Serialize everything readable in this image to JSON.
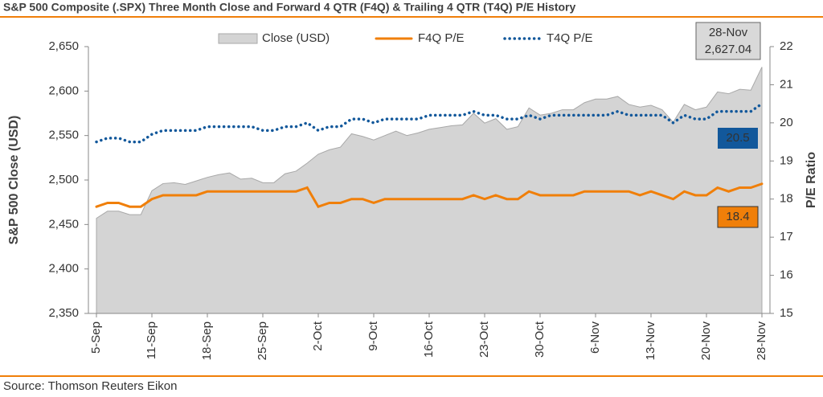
{
  "chart_data": {
    "type": "area-line",
    "title": "S&P 500 Composite (.SPX) Three Month Close and Forward 4 QTR (F4Q) & Trailing 4 QTR (T4Q) P/E History",
    "y_label": "S&P 500 Close (USD)",
    "y2_label": "P/E Ratio",
    "source": "Source: Thomson Reuters Eikon",
    "annotations": [
      "28-Nov",
      "2,627.04",
      "20.5",
      "18.4"
    ],
    "categories": [
      "5-Sep",
      null,
      null,
      null,
      null,
      "11-Sep",
      null,
      null,
      null,
      null,
      "18-Sep",
      null,
      null,
      null,
      null,
      "25-Sep",
      null,
      null,
      null,
      null,
      "2-Oct",
      null,
      null,
      null,
      null,
      "9-Oct",
      null,
      null,
      null,
      null,
      "16-Oct",
      null,
      null,
      null,
      null,
      "23-Oct",
      null,
      null,
      null,
      null,
      "30-Oct",
      null,
      null,
      null,
      null,
      "6-Nov",
      null,
      null,
      null,
      null,
      "13-Nov",
      null,
      null,
      null,
      null,
      "20-Nov",
      null,
      null,
      null,
      null,
      "28-Nov"
    ],
    "ylim": [
      2350,
      2650
    ],
    "yticks": [
      {
        "value": 2350,
        "label": "2,350"
      },
      {
        "value": 2400,
        "label": "2,400"
      },
      {
        "value": 2450,
        "label": "2,450"
      },
      {
        "value": 2500,
        "label": "2,500"
      },
      {
        "value": 2550,
        "label": "2,550"
      },
      {
        "value": 2600,
        "label": "2,600"
      },
      {
        "value": 2650,
        "label": "2,650"
      }
    ],
    "y2lim": [
      15,
      22
    ],
    "y2ticks": [
      15,
      16,
      17,
      18,
      19,
      20,
      21,
      22
    ],
    "series": [
      {
        "name": "Close (USD)",
        "kind": "area",
        "color": "#d4d4d4",
        "values": [
          2457,
          2465,
          2465,
          2461,
          2461,
          2488,
          2496,
          2497,
          2495,
          2499,
          2503,
          2506,
          2508,
          2501,
          2502,
          2497,
          2497,
          2507,
          2510,
          2519,
          2529,
          2534,
          2537,
          2552,
          2549,
          2545,
          2550,
          2555,
          2550,
          2553,
          2557,
          2559,
          2561,
          2562,
          2575,
          2564,
          2569,
          2557,
          2560,
          2581,
          2573,
          2575,
          2579,
          2579,
          2587,
          2591,
          2591,
          2594,
          2585,
          2582,
          2584,
          2579,
          2565,
          2585,
          2579,
          2582,
          2599,
          2597,
          2602,
          2601,
          2627.04
        ]
      },
      {
        "name": "F4Q P/E",
        "kind": "line",
        "axis": "y2",
        "color": "#f07f09",
        "values": [
          17.8,
          17.9,
          17.9,
          17.8,
          17.8,
          18.0,
          18.1,
          18.1,
          18.1,
          18.1,
          18.2,
          18.2,
          18.2,
          18.2,
          18.2,
          18.2,
          18.2,
          18.2,
          18.2,
          18.3,
          17.8,
          17.9,
          17.9,
          18.0,
          18.0,
          17.9,
          18.0,
          18.0,
          18.0,
          18.0,
          18.0,
          18.0,
          18.0,
          18.0,
          18.1,
          18.0,
          18.1,
          18.0,
          18.0,
          18.2,
          18.1,
          18.1,
          18.1,
          18.1,
          18.2,
          18.2,
          18.2,
          18.2,
          18.2,
          18.1,
          18.2,
          18.1,
          18.0,
          18.2,
          18.1,
          18.1,
          18.3,
          18.2,
          18.3,
          18.3,
          18.4
        ]
      },
      {
        "name": "T4Q P/E",
        "kind": "line",
        "dash": "dotted",
        "axis": "y2",
        "color": "#12589b",
        "values": [
          19.5,
          19.6,
          19.6,
          19.5,
          19.5,
          19.7,
          19.8,
          19.8,
          19.8,
          19.8,
          19.9,
          19.9,
          19.9,
          19.9,
          19.9,
          19.8,
          19.8,
          19.9,
          19.9,
          20.0,
          19.8,
          19.9,
          19.9,
          20.1,
          20.1,
          20.0,
          20.1,
          20.1,
          20.1,
          20.1,
          20.2,
          20.2,
          20.2,
          20.2,
          20.3,
          20.2,
          20.2,
          20.1,
          20.1,
          20.2,
          20.1,
          20.2,
          20.2,
          20.2,
          20.2,
          20.2,
          20.2,
          20.3,
          20.2,
          20.2,
          20.2,
          20.2,
          20.0,
          20.2,
          20.1,
          20.1,
          20.3,
          20.3,
          20.3,
          20.3,
          20.5
        ]
      }
    ]
  }
}
